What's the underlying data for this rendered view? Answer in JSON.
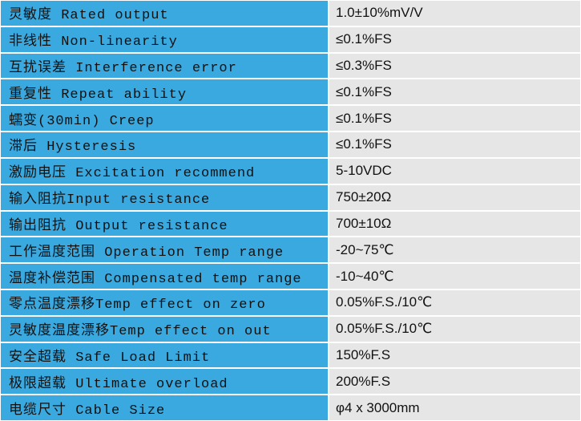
{
  "table": {
    "rows": [
      [
        "灵敏度 Rated output",
        "1.0±10%mV/V"
      ],
      [
        "非线性 Non-linearity",
        "≤0.1%FS"
      ],
      [
        "互扰误差 Interference error",
        "≤0.3%FS"
      ],
      [
        "重复性 Repeat ability",
        "≤0.1%FS"
      ],
      [
        "蠕变(30min) Creep",
        "≤0.1%FS"
      ],
      [
        "滞后 Hysteresis",
        "≤0.1%FS"
      ],
      [
        "激励电压 Excitation recommend",
        "5-10VDC"
      ],
      [
        "输入阻抗Input resistance",
        "750±20Ω"
      ],
      [
        "输出阻抗 Output resistance",
        "700±10Ω"
      ],
      [
        "工作温度范围 Operation Temp range",
        "-20~75℃"
      ],
      [
        "温度补偿范围 Compensated temp range",
        "-10~40℃"
      ],
      [
        "零点温度漂移Temp effect on zero",
        "0.05%F.S./10℃"
      ],
      [
        "灵敏度温度漂移Temp effect on out",
        "0.05%F.S./10℃"
      ],
      [
        "安全超载 Safe Load Limit",
        "150%F.S"
      ],
      [
        "极限超载 Ultimate overload",
        "200%F.S"
      ],
      [
        "电缆尺寸 Cable Size",
        "φ4 x 3000mm"
      ]
    ]
  }
}
